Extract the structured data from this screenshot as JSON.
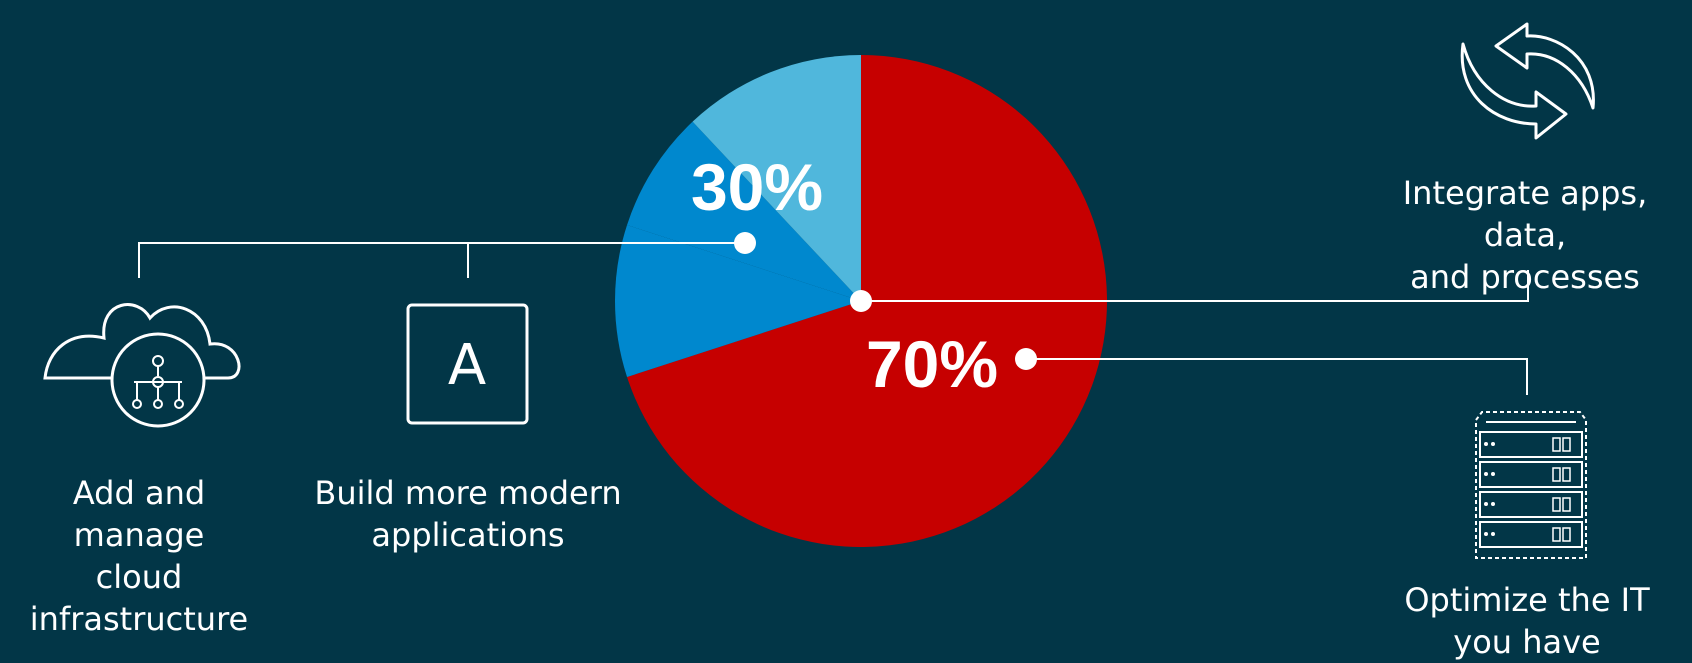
{
  "chart_data": {
    "type": "pie",
    "title": "",
    "slices": [
      {
        "label": "70%",
        "value": 70,
        "color": "#c60000"
      },
      {
        "label": "",
        "value": 10,
        "color": "#0088ce"
      },
      {
        "label": "",
        "value": 8,
        "color": "#0088ce"
      },
      {
        "label": "",
        "value": 12,
        "color": "#50b7dc"
      }
    ],
    "combined_label": "30%",
    "annotations": {
      "cloud": [
        "Add and manage",
        "cloud",
        "infrastructure"
      ],
      "modern": [
        "Build more modern",
        "applications"
      ],
      "integrate": [
        "Integrate apps, data,",
        "and processes"
      ],
      "optimize": [
        "Optimize the IT",
        "you have"
      ]
    }
  },
  "icons": {
    "cloud": "cloud-network-icon",
    "app": "app-letter-icon",
    "app_letter": "A",
    "sync": "sync-arrows-icon",
    "server": "server-rack-icon"
  },
  "colors": {
    "background": "#023647",
    "line": "#ffffff"
  }
}
